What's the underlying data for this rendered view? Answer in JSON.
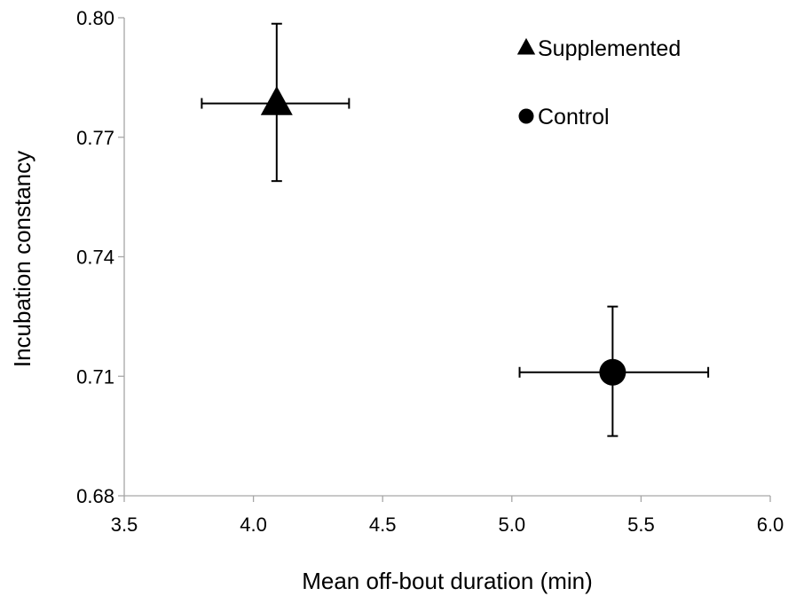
{
  "chart_data": {
    "type": "scatter",
    "title": "",
    "xlabel": "Mean off-bout duration (min)",
    "ylabel": "Incubation constancy",
    "xlim": [
      3.5,
      6.0
    ],
    "ylim": [
      0.68,
      0.8
    ],
    "x_ticks": [
      "3.5",
      "4.0",
      "4.5",
      "5.0",
      "5.5",
      "6.0"
    ],
    "y_ticks": [
      "0.68",
      "0.71",
      "0.74",
      "0.77",
      "0.80"
    ],
    "grid": false,
    "legend_position": "top-right",
    "series": [
      {
        "name": "Supplemented",
        "marker": "triangle",
        "x": 4.09,
        "y": 0.7785,
        "x_err_low": 3.8,
        "x_err_high": 4.37,
        "y_err_low": 0.759,
        "y_err_high": 0.7985
      },
      {
        "name": "Control",
        "marker": "circle",
        "x": 5.39,
        "y": 0.711,
        "x_err_low": 5.03,
        "x_err_high": 5.76,
        "y_err_low": 0.695,
        "y_err_high": 0.7275
      }
    ],
    "colors": {
      "marker": "#000000",
      "axis": "#a6a6a6",
      "text": "#000000"
    }
  }
}
